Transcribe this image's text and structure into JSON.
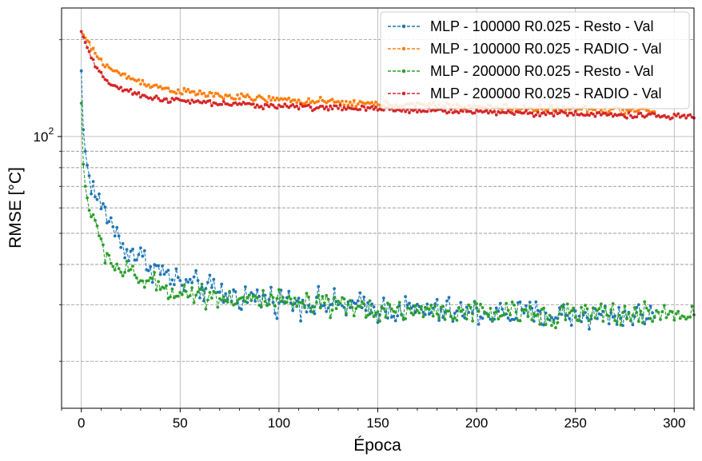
{
  "chart_data": {
    "type": "line",
    "xlabel": "Época",
    "ylabel": "RMSE [°C]",
    "xlim": [
      -10,
      310
    ],
    "ylim_log10": [
      1.1549,
      2.3997
    ],
    "y_scale": "log",
    "x_ticks": [
      0,
      50,
      100,
      150,
      200,
      250,
      300
    ],
    "x_tick_labels": [
      "0",
      "50",
      "100",
      "150",
      "200",
      "250",
      "300"
    ],
    "y_major_ticks": [
      100
    ],
    "y_major_tick_label_base": "10",
    "y_major_tick_label_exp": "2",
    "y_minor_ticks": [
      20,
      30,
      40,
      50,
      60,
      70,
      80,
      90,
      200
    ],
    "grid": true,
    "legend_position": "top-right",
    "series": [
      {
        "name": "MLP - 100000 R0.025 - Resto - Val",
        "color": "#1f77b4",
        "last_epoch": 290,
        "anchors": [
          [
            0,
            160
          ],
          [
            1,
            105
          ],
          [
            2,
            90
          ],
          [
            3,
            80
          ],
          [
            5,
            72
          ],
          [
            8,
            64
          ],
          [
            12,
            58
          ],
          [
            16,
            53
          ],
          [
            20,
            46
          ],
          [
            30,
            42
          ],
          [
            40,
            38
          ],
          [
            50,
            35
          ],
          [
            60,
            34
          ],
          [
            75,
            32
          ],
          [
            100,
            31
          ],
          [
            125,
            30
          ],
          [
            150,
            29.2
          ],
          [
            175,
            28.7
          ],
          [
            200,
            28.3
          ],
          [
            225,
            28
          ],
          [
            250,
            27.8
          ],
          [
            275,
            27.8
          ],
          [
            290,
            27.8
          ]
        ],
        "noise": 0.05
      },
      {
        "name": "MLP - 100000 R0.025 - RADIO - Val",
        "color": "#ff7f0e",
        "last_epoch": 290,
        "anchors": [
          [
            0,
            212
          ],
          [
            3,
            198
          ],
          [
            6,
            184
          ],
          [
            10,
            172
          ],
          [
            15,
            162
          ],
          [
            20,
            156
          ],
          [
            30,
            148
          ],
          [
            40,
            142
          ],
          [
            50,
            138
          ],
          [
            75,
            133
          ],
          [
            100,
            130
          ],
          [
            125,
            128
          ],
          [
            150,
            126
          ],
          [
            175,
            125
          ],
          [
            200,
            123.5
          ],
          [
            225,
            122.5
          ],
          [
            250,
            121.5
          ],
          [
            275,
            120.5
          ],
          [
            290,
            120
          ]
        ],
        "noise": 0.012
      },
      {
        "name": "MLP - 200000 R0.025 - Resto - Val",
        "color": "#2ca02c",
        "last_epoch": 310,
        "anchors": [
          [
            0,
            127
          ],
          [
            1,
            82
          ],
          [
            2,
            70
          ],
          [
            3,
            64
          ],
          [
            5,
            58
          ],
          [
            8,
            50
          ],
          [
            12,
            44
          ],
          [
            16,
            40
          ],
          [
            20,
            38.5
          ],
          [
            30,
            36
          ],
          [
            40,
            34
          ],
          [
            50,
            33
          ],
          [
            75,
            31.5
          ],
          [
            100,
            30.5
          ],
          [
            125,
            29.5
          ],
          [
            150,
            29
          ],
          [
            175,
            28.6
          ],
          [
            200,
            28.3
          ],
          [
            225,
            28.1
          ],
          [
            250,
            28
          ],
          [
            275,
            28
          ],
          [
            300,
            28
          ],
          [
            310,
            28
          ]
        ],
        "noise": 0.04
      },
      {
        "name": "MLP - 200000 R0.025 - RADIO - Val",
        "color": "#d62728",
        "last_epoch": 310,
        "anchors": [
          [
            0,
            212
          ],
          [
            2,
            196
          ],
          [
            4,
            182
          ],
          [
            7,
            165
          ],
          [
            10,
            155
          ],
          [
            15,
            146
          ],
          [
            20,
            140
          ],
          [
            30,
            134
          ],
          [
            40,
            131
          ],
          [
            50,
            129
          ],
          [
            75,
            126
          ],
          [
            100,
            124.5
          ],
          [
            125,
            123
          ],
          [
            150,
            121.5
          ],
          [
            175,
            120.5
          ],
          [
            200,
            119.5
          ],
          [
            225,
            118.5
          ],
          [
            250,
            117.5
          ],
          [
            275,
            116.5
          ],
          [
            300,
            115.5
          ],
          [
            310,
            115
          ]
        ],
        "noise": 0.01
      }
    ]
  }
}
